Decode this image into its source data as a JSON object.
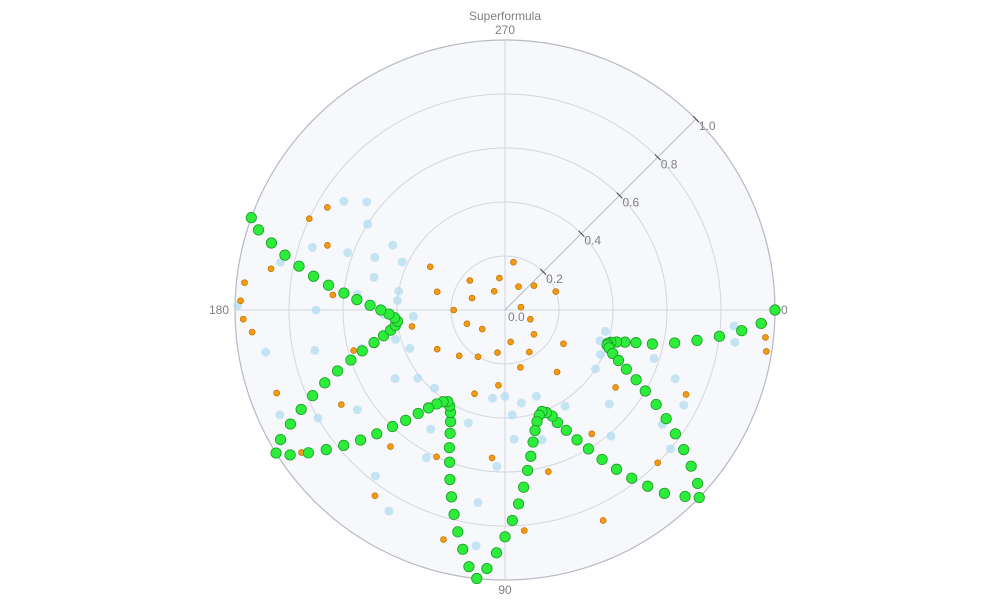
{
  "chart_data": {
    "type": "scatter",
    "subtype": "polar",
    "title": "Superformula",
    "angular_axis": {
      "direction": "clockwise",
      "rotation_deg": 0,
      "ticks": [
        0,
        90,
        180,
        270
      ],
      "tick_labels": [
        "0",
        "90",
        "180",
        "270"
      ]
    },
    "radial_axis": {
      "range": [
        0,
        1
      ],
      "ticks": [
        0,
        0.2,
        0.4,
        0.6,
        0.8,
        1.0
      ],
      "tick_labels": [
        "0.0",
        "0.2",
        "0.4",
        "0.6",
        "0.8",
        "1.0"
      ],
      "tick_angle_deg": -45
    },
    "grid": true,
    "background": "#f7f8fc",
    "grid_color": "#d4d6dd",
    "outline_color": "#b7b9c4",
    "series": [
      {
        "marker": "light-blue-circles",
        "color": "#aedcf1",
        "opacity": 0.7,
        "size": "medium",
        "points": [
          [
            0.85,
            4
          ],
          [
            0.86,
            8
          ],
          [
            0.38,
            12
          ],
          [
            0.37,
            18
          ],
          [
            0.39,
            25
          ],
          [
            0.4,
            33
          ],
          [
            0.68,
            22
          ],
          [
            0.75,
            28
          ],
          [
            0.58,
            18
          ],
          [
            0.52,
            42
          ],
          [
            0.61,
            50
          ],
          [
            0.72,
            36
          ],
          [
            0.8,
            40
          ],
          [
            0.42,
            58
          ],
          [
            0.46,
            66
          ],
          [
            0.5,
            74
          ],
          [
            0.34,
            70
          ],
          [
            0.35,
            80
          ],
          [
            0.32,
            90
          ],
          [
            0.33,
            98
          ],
          [
            0.39,
            86
          ],
          [
            0.48,
            86
          ],
          [
            0.58,
            93
          ],
          [
            0.72,
            98
          ],
          [
            0.88,
            97
          ],
          [
            0.44,
            108
          ],
          [
            0.46,
            116
          ],
          [
            0.52,
            122
          ],
          [
            0.62,
            118
          ],
          [
            0.78,
            128
          ],
          [
            0.86,
            120
          ],
          [
            0.39,
            132
          ],
          [
            0.41,
            142
          ],
          [
            0.48,
            148
          ],
          [
            0.66,
            146
          ],
          [
            0.8,
            150
          ],
          [
            0.92,
            155
          ],
          [
            0.38,
            158
          ],
          [
            0.42,
            165
          ],
          [
            0.55,
            165
          ],
          [
            0.72,
            168
          ],
          [
            0.9,
            170
          ],
          [
            0.34,
            176
          ],
          [
            0.45,
            178
          ],
          [
            0.7,
            180
          ],
          [
            0.99,
            181
          ],
          [
            0.4,
            185
          ],
          [
            0.55,
            186
          ],
          [
            0.72,
            190
          ],
          [
            0.85,
            192
          ],
          [
            0.9,
            196
          ],
          [
            0.75,
            198
          ],
          [
            0.62,
            200
          ],
          [
            0.52,
            202
          ],
          [
            0.42,
            205
          ],
          [
            0.48,
            210
          ],
          [
            0.6,
            212
          ],
          [
            0.72,
            214
          ],
          [
            0.65,
            218
          ],
          [
            0.4,
            190
          ],
          [
            0.5,
            194
          ]
        ]
      },
      {
        "marker": "orange-small-circles",
        "color": "#f59a0f",
        "opacity": 1,
        "size": "small",
        "points": [
          [
            0.1,
            20
          ],
          [
            0.14,
            40
          ],
          [
            0.18,
            60
          ],
          [
            0.12,
            80
          ],
          [
            0.16,
            100
          ],
          [
            0.2,
            120
          ],
          [
            0.11,
            140
          ],
          [
            0.15,
            160
          ],
          [
            0.19,
            180
          ],
          [
            0.13,
            200
          ],
          [
            0.17,
            220
          ],
          [
            0.08,
            240
          ],
          [
            0.12,
            260
          ],
          [
            0.18,
            280
          ],
          [
            0.1,
            300
          ],
          [
            0.14,
            320
          ],
          [
            0.2,
            340
          ],
          [
            0.06,
            350
          ],
          [
            0.25,
            30
          ],
          [
            0.3,
            50
          ],
          [
            0.22,
            75
          ],
          [
            0.28,
            95
          ],
          [
            0.33,
            110
          ],
          [
            0.24,
            135
          ],
          [
            0.29,
            150
          ],
          [
            0.35,
            170
          ],
          [
            0.26,
            195
          ],
          [
            0.32,
            210
          ],
          [
            0.45,
            15
          ],
          [
            0.5,
            35
          ],
          [
            0.56,
            55
          ],
          [
            0.62,
            75
          ],
          [
            0.55,
            95
          ],
          [
            0.6,
            115
          ],
          [
            0.66,
            130
          ],
          [
            0.7,
            150
          ],
          [
            0.58,
            165
          ],
          [
            0.64,
            185
          ],
          [
            0.7,
            200
          ],
          [
            0.76,
            210
          ],
          [
            0.74,
            25
          ],
          [
            0.8,
            45
          ],
          [
            0.86,
            65
          ],
          [
            0.82,
            85
          ],
          [
            0.88,
            105
          ],
          [
            0.84,
            125
          ],
          [
            0.92,
            145
          ],
          [
            0.9,
            160
          ],
          [
            0.94,
            175
          ],
          [
            0.88,
            190
          ],
          [
            0.8,
            205
          ],
          [
            0.96,
            3
          ],
          [
            0.97,
            6
          ],
          [
            0.98,
            9
          ],
          [
            0.97,
            178
          ],
          [
            0.98,
            182
          ],
          [
            0.97,
            186
          ]
        ]
      },
      {
        "marker": "green-large-circles",
        "color": "#2ded3b",
        "stroke": "#1d9a27",
        "opacity": 1,
        "size": "large",
        "points": [
          [
            1.0,
            0
          ],
          [
            0.95,
            3
          ],
          [
            0.88,
            5
          ],
          [
            0.8,
            7
          ],
          [
            0.72,
            9
          ],
          [
            0.64,
            11
          ],
          [
            0.56,
            13
          ],
          [
            0.5,
            14
          ],
          [
            0.46,
            15
          ],
          [
            0.43,
            16
          ],
          [
            0.41,
            17
          ],
          [
            0.4,
            18
          ],
          [
            0.4,
            19
          ],
          [
            0.41,
            20
          ],
          [
            0.43,
            22
          ],
          [
            0.46,
            24
          ],
          [
            0.5,
            26
          ],
          [
            0.55,
            28
          ],
          [
            0.6,
            30
          ],
          [
            0.66,
            32
          ],
          [
            0.72,
            34
          ],
          [
            0.78,
            36
          ],
          [
            0.84,
            38
          ],
          [
            0.9,
            40
          ],
          [
            0.96,
            42
          ],
          [
            1.0,
            44
          ],
          [
            0.96,
            46
          ],
          [
            0.9,
            49
          ],
          [
            0.84,
            51
          ],
          [
            0.78,
            53
          ],
          [
            0.72,
            55
          ],
          [
            0.66,
            57
          ],
          [
            0.6,
            59
          ],
          [
            0.55,
            61
          ],
          [
            0.5,
            63
          ],
          [
            0.46,
            65
          ],
          [
            0.43,
            66
          ],
          [
            0.41,
            68
          ],
          [
            0.4,
            70
          ],
          [
            0.41,
            72
          ],
          [
            0.43,
            74
          ],
          [
            0.46,
            76
          ],
          [
            0.5,
            78
          ],
          [
            0.55,
            80
          ],
          [
            0.6,
            82
          ],
          [
            0.66,
            84
          ],
          [
            0.72,
            86
          ],
          [
            0.78,
            88
          ],
          [
            0.84,
            90
          ],
          [
            0.9,
            92
          ],
          [
            0.96,
            94
          ],
          [
            1.0,
            96
          ],
          [
            0.96,
            98
          ],
          [
            0.9,
            100
          ],
          [
            0.84,
            102
          ],
          [
            0.78,
            104
          ],
          [
            0.72,
            106
          ],
          [
            0.66,
            108
          ],
          [
            0.6,
            110
          ],
          [
            0.55,
            112
          ],
          [
            0.5,
            114
          ],
          [
            0.46,
            116
          ],
          [
            0.43,
            118
          ],
          [
            0.41,
            120
          ],
          [
            0.4,
            122
          ],
          [
            0.41,
            124
          ],
          [
            0.43,
            126
          ],
          [
            0.46,
            128
          ],
          [
            0.5,
            130
          ],
          [
            0.55,
            132
          ],
          [
            0.6,
            134
          ],
          [
            0.66,
            136
          ],
          [
            0.72,
            138
          ],
          [
            0.78,
            140
          ],
          [
            0.84,
            142
          ],
          [
            0.9,
            144
          ],
          [
            0.96,
            146
          ],
          [
            1.0,
            148
          ],
          [
            0.96,
            150
          ],
          [
            0.9,
            152
          ],
          [
            0.84,
            154
          ],
          [
            0.78,
            156
          ],
          [
            0.72,
            158
          ],
          [
            0.66,
            160
          ],
          [
            0.6,
            162
          ],
          [
            0.55,
            164
          ],
          [
            0.5,
            166
          ],
          [
            0.46,
            168
          ],
          [
            0.43,
            170
          ],
          [
            0.41,
            172
          ],
          [
            0.4,
            174
          ],
          [
            0.41,
            176
          ],
          [
            0.43,
            178
          ],
          [
            0.46,
            180
          ],
          [
            0.5,
            182
          ],
          [
            0.55,
            184
          ],
          [
            0.6,
            186
          ],
          [
            0.66,
            188
          ],
          [
            0.72,
            190
          ],
          [
            0.78,
            192
          ],
          [
            0.84,
            194
          ],
          [
            0.9,
            196
          ],
          [
            0.96,
            198
          ],
          [
            1.0,
            200
          ]
        ]
      }
    ]
  }
}
